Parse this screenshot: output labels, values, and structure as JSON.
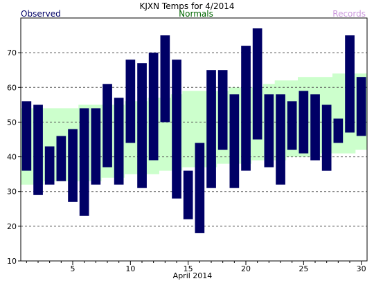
{
  "chart_data": {
    "type": "bar",
    "title": "KJXN Temps for 4/2014",
    "xlabel": "April 2014",
    "ylabel": "",
    "legend": {
      "observed": "Observed",
      "normals": "Normals",
      "records": "Records"
    },
    "colors": {
      "observed": "#000066",
      "normals": "#ccffcc",
      "normals_label": "#006600",
      "records_label": "#cc99dd",
      "gridline": "#555555"
    },
    "ylim": [
      10,
      80
    ],
    "yticks": [
      10,
      20,
      30,
      40,
      50,
      60,
      70
    ],
    "xlim": [
      0.5,
      30.5
    ],
    "xticks": [
      5,
      10,
      15,
      20,
      25,
      30
    ],
    "grid": true,
    "x": [
      1,
      2,
      3,
      4,
      5,
      6,
      7,
      8,
      9,
      10,
      11,
      12,
      13,
      14,
      15,
      16,
      17,
      18,
      19,
      20,
      21,
      22,
      23,
      24,
      25,
      26,
      27,
      28,
      29,
      30
    ],
    "series": [
      {
        "name": "Observed",
        "high": [
          56,
          55,
          43,
          46,
          48,
          54,
          54,
          61,
          57,
          68,
          67,
          70,
          75,
          68,
          36,
          44,
          65,
          65,
          58,
          72,
          77,
          58,
          58,
          56,
          59,
          58,
          55,
          51,
          75,
          63
        ],
        "low": [
          36,
          29,
          32,
          33,
          27,
          23,
          32,
          37,
          32,
          44,
          31,
          39,
          50,
          28,
          22,
          18,
          31,
          42,
          31,
          36,
          45,
          37,
          32,
          42,
          41,
          39,
          36,
          44,
          47,
          46
        ]
      },
      {
        "name": "Normals",
        "high": [
          54,
          54,
          54,
          54,
          54,
          55,
          55,
          55,
          55,
          56,
          56,
          57,
          57,
          58,
          59,
          59,
          59,
          59,
          60,
          60,
          60,
          61,
          62,
          62,
          63,
          63,
          63,
          64,
          64,
          64
        ],
        "low": [
          32,
          32,
          33,
          33,
          33,
          33,
          33,
          34,
          34,
          35,
          35,
          35,
          36,
          36,
          37,
          37,
          37,
          38,
          38,
          38,
          39,
          39,
          39,
          40,
          40,
          40,
          41,
          41,
          41,
          42
        ]
      }
    ]
  }
}
